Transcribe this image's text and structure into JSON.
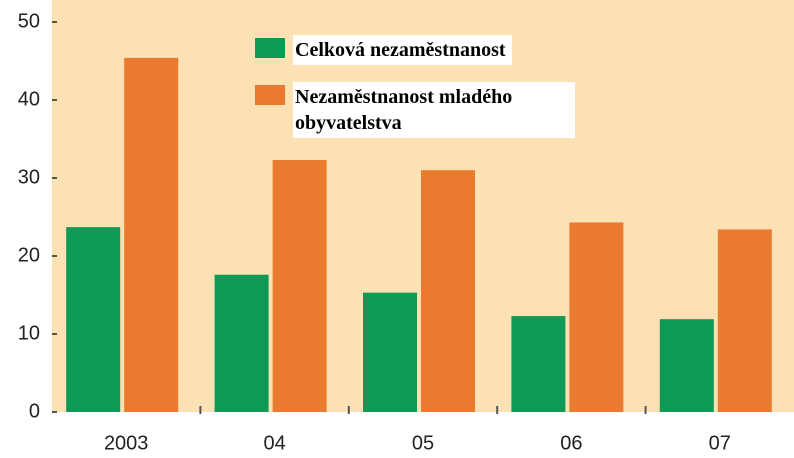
{
  "chart_data": {
    "type": "bar",
    "categories": [
      "2003",
      "04",
      "05",
      "06",
      "07"
    ],
    "series": [
      {
        "name": "Celková nezaměstnanost",
        "color": "#0e9a55",
        "values": [
          23.7,
          17.6,
          15.3,
          12.3,
          11.9
        ]
      },
      {
        "name": "Nezaměstnanost mladého obyvatelstva",
        "color": "#e97a2e",
        "values": [
          45.4,
          32.3,
          31.0,
          24.3,
          23.4
        ]
      }
    ],
    "ylim": [
      0,
      50
    ],
    "yticks": [
      0,
      10,
      20,
      30,
      40,
      50
    ],
    "grid": false,
    "background": "#fbe1b3"
  }
}
